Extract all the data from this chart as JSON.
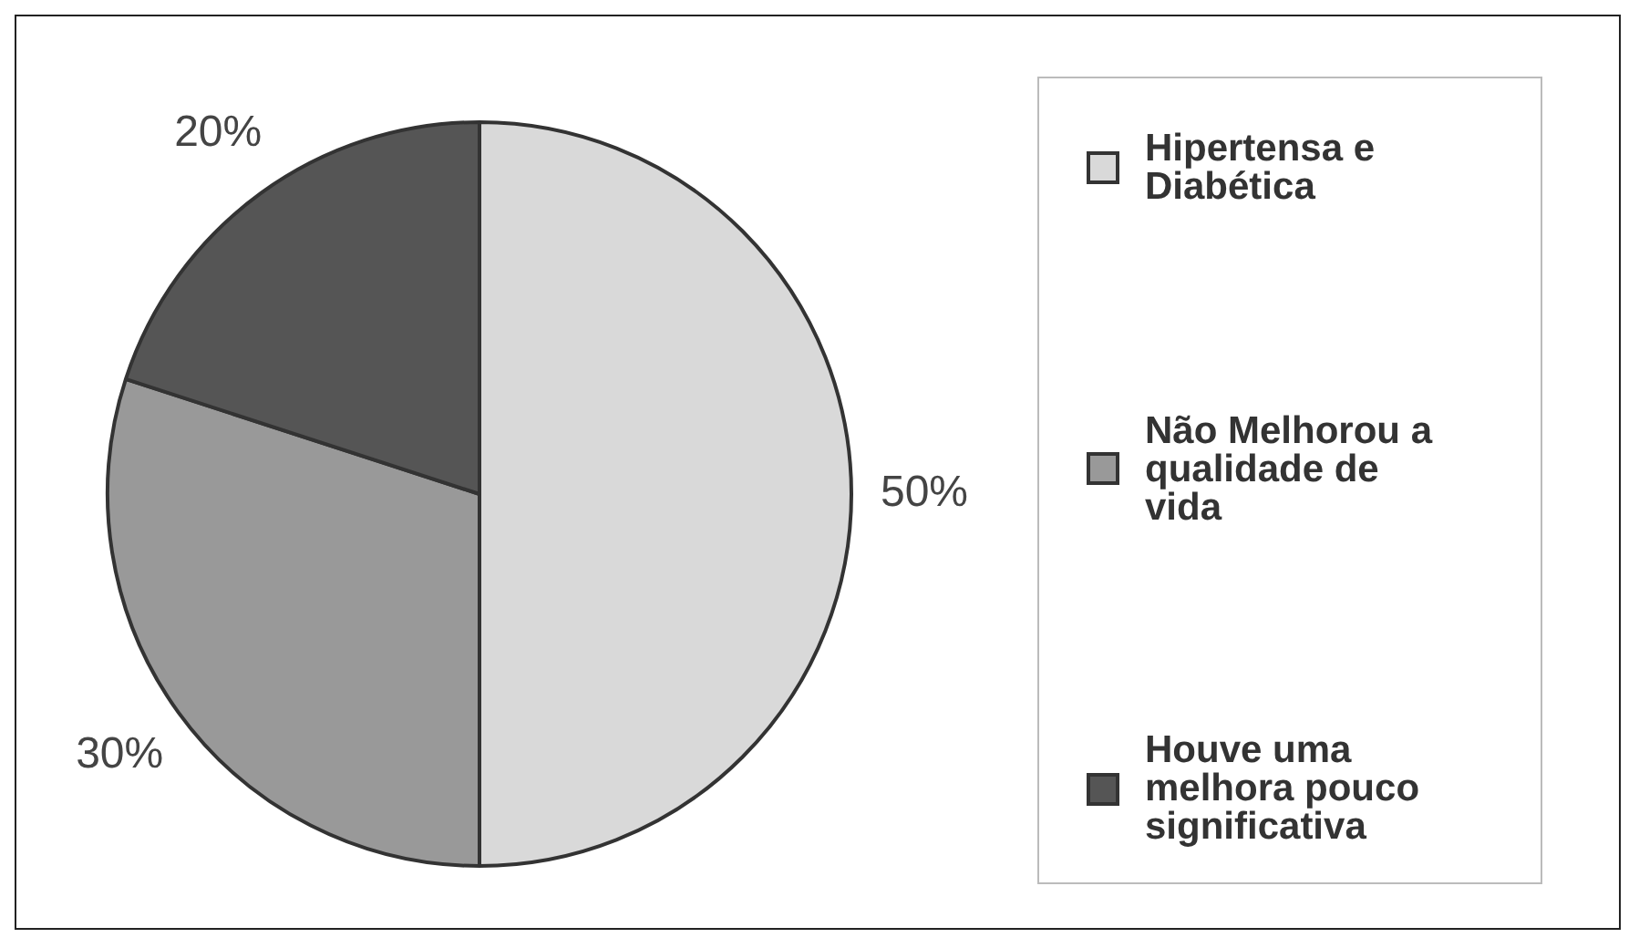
{
  "chart_data": {
    "type": "pie",
    "categories": [
      "Hipertensa e Diabética",
      "Não Melhorou a qualidade de vida",
      "Houve uma melhora pouco significativa"
    ],
    "values": [
      50,
      30,
      20
    ],
    "colors": [
      "#d9d9d9",
      "#999999",
      "#555555"
    ],
    "value_labels": [
      "50%",
      "30%",
      "20%"
    ],
    "legend": "right"
  }
}
